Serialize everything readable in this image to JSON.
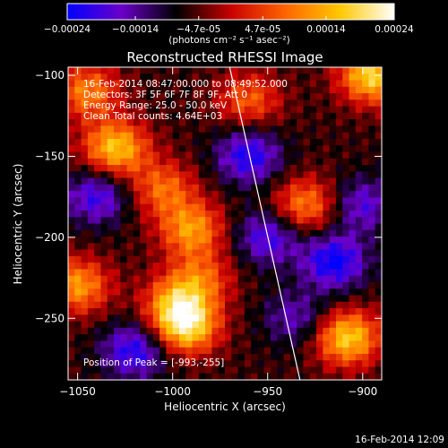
{
  "colorbar": {
    "ticks": [
      "-0.00024",
      "-0.00014",
      "-4.7e-05",
      "4.7e-05",
      "0.00014",
      "0.00024"
    ],
    "tick_values": [
      -0.00024,
      -0.00014,
      -4.7e-05,
      4.7e-05,
      0.00014,
      0.00024
    ],
    "range": [
      -0.00024,
      0.00024
    ],
    "unit_label": "(photons cm⁻² s⁻¹ asec⁻²)",
    "colormap": [
      "#0000ff",
      "#6a00c8",
      "#000000",
      "#c80000",
      "#ff6400",
      "#ffc800",
      "#ffffff"
    ]
  },
  "chart_data": {
    "type": "heatmap",
    "title": "Reconstructed RHESSI Image",
    "xlabel": "Heliocentric X (arcsec)",
    "ylabel": "Heliocentric Y (arcsec)",
    "xlim": [
      -1055,
      -890
    ],
    "ylim": [
      -288,
      -95
    ],
    "x_ticks": [
      -1050,
      -1000,
      -950,
      -900
    ],
    "x_tick_labels": [
      "−1050",
      "−1000",
      "−950",
      "−900"
    ],
    "y_ticks": [
      -100,
      -150,
      -200,
      -250
    ],
    "y_tick_labels": [
      "−100",
      "−150",
      "−200",
      "−250"
    ],
    "annotations": [
      "16-Feb-2014 08:47:00.000 to 08:49:52.000",
      "Detectors: 3F 5F 6F 7F 8F 9F, Att 0",
      "Energy Range: 25.0 - 50.0 keV",
      "Clean     Total counts: 4.64E+03"
    ],
    "peak_label": "Position of Peak = [-993,-255]",
    "peak": [
      -993,
      -255
    ],
    "limb_line": [
      [
        -970,
        -95
      ],
      [
        -933,
        -288
      ]
    ],
    "sources": [
      {
        "x": -1030,
        "y": -145,
        "amp": 0.00022
      },
      {
        "x": -1005,
        "y": -170,
        "amp": 0.00014
      },
      {
        "x": -990,
        "y": -195,
        "amp": 0.00018
      },
      {
        "x": -998,
        "y": -240,
        "amp": 0.00016
      },
      {
        "x": -993,
        "y": -255,
        "amp": 0.00024
      },
      {
        "x": -985,
        "y": -225,
        "amp": 0.00012
      },
      {
        "x": -1050,
        "y": -230,
        "amp": 0.00018
      },
      {
        "x": -1045,
        "y": -110,
        "amp": 0.00016
      },
      {
        "x": -908,
        "y": -262,
        "amp": 0.00023
      },
      {
        "x": -930,
        "y": -180,
        "amp": 0.00016
      },
      {
        "x": -895,
        "y": -100,
        "amp": 0.00024
      },
      {
        "x": -960,
        "y": -115,
        "amp": 0.00013
      }
    ],
    "negatives": [
      {
        "x": -960,
        "y": -150,
        "amp": -0.00016
      },
      {
        "x": -950,
        "y": -200,
        "amp": -0.00014
      },
      {
        "x": -915,
        "y": -215,
        "amp": -0.00018
      },
      {
        "x": -900,
        "y": -180,
        "amp": -0.00012
      },
      {
        "x": -1040,
        "y": -175,
        "amp": -0.00014
      },
      {
        "x": -1020,
        "y": -270,
        "amp": -0.00016
      },
      {
        "x": -935,
        "y": -250,
        "amp": -0.0001
      }
    ]
  },
  "footer": {
    "timestamp": "16-Feb-2014 12:09"
  }
}
